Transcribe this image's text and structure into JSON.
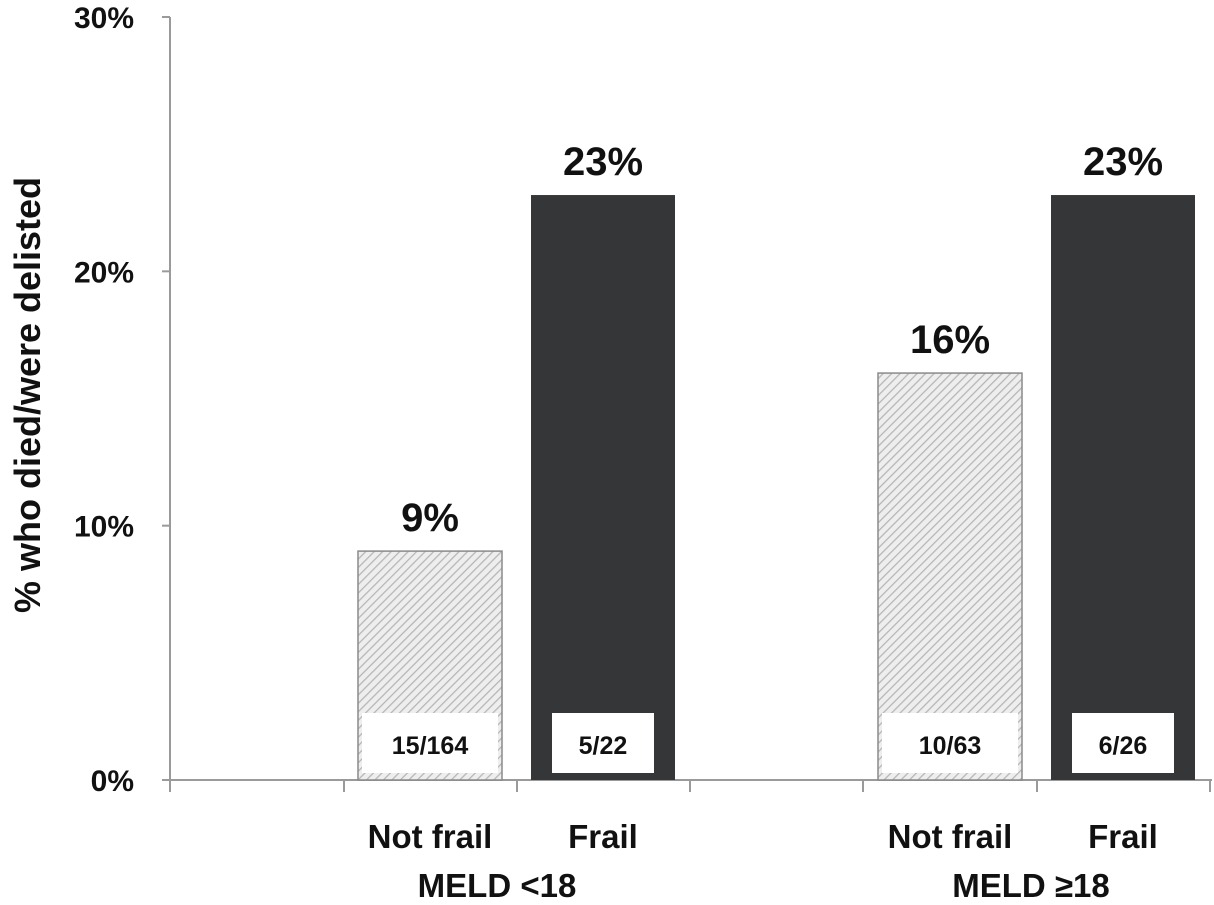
{
  "chart_data": {
    "type": "bar",
    "ylabel": "%  who died/were delisted",
    "ylim": [
      0,
      30
    ],
    "yticks": [
      0,
      10,
      20,
      30
    ],
    "ytick_labels": [
      "0%",
      "10%",
      "20%",
      "30%"
    ],
    "groups": [
      {
        "name": "MELD <18",
        "bars": [
          {
            "category": "Not frail",
            "value": 9,
            "value_label": "9%",
            "count_label": "15/164",
            "style": "hatched"
          },
          {
            "category": "Frail",
            "value": 23,
            "value_label": "23%",
            "count_label": "5/22",
            "style": "solid"
          }
        ]
      },
      {
        "name": "MELD ≥18",
        "bars": [
          {
            "category": "Not frail",
            "value": 16,
            "value_label": "16%",
            "count_label": "10/63",
            "style": "hatched"
          },
          {
            "category": "Frail",
            "value": 23,
            "value_label": "23%",
            "count_label": "6/26",
            "style": "solid"
          }
        ]
      }
    ],
    "colors": {
      "frail": "#343638",
      "not_frail_fill": "#eeeeee",
      "not_frail_hatch": "#b5b5b5",
      "not_frail_border": "#8a8a8a",
      "axis": "#9a9a9a"
    },
    "grid": false,
    "legend": "none"
  }
}
